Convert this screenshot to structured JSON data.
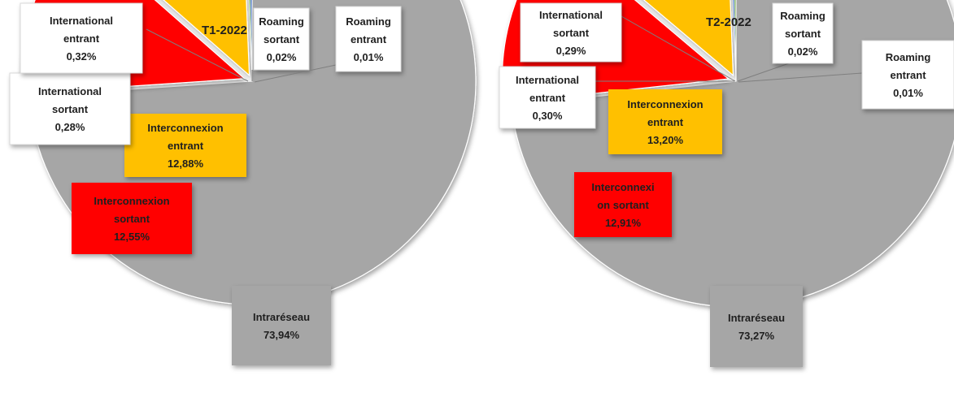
{
  "chart_data": [
    {
      "type": "pie",
      "title": "T1-2022",
      "colors": {
        "Intraréseau": "#a6a6a6",
        "Interconnexion sortant": "#ff0000",
        "Interconnexion entrant": "#ffc000",
        "International sortant": "#70ad47",
        "International entrant": "#4472c4",
        "Roaming sortant": "#5b9bd5",
        "Roaming entrant": "#264478"
      },
      "slices": [
        {
          "label": [
            "Intraréseau"
          ],
          "category": "Intraréseau",
          "value": 73.94,
          "value_text": "73,94%"
        },
        {
          "label": [
            "Interconnexion",
            "sortant"
          ],
          "category": "Interconnexion sortant",
          "value": 12.55,
          "value_text": "12,55%"
        },
        {
          "label": [
            "Interconnexion",
            "entrant"
          ],
          "category": "Interconnexion entrant",
          "value": 12.88,
          "value_text": "12,88%"
        },
        {
          "label": [
            "International",
            "sortant"
          ],
          "category": "International sortant",
          "value": 0.28,
          "value_text": "0,28%"
        },
        {
          "label": [
            "International",
            "entrant"
          ],
          "category": "International entrant",
          "value": 0.32,
          "value_text": "0,32%"
        },
        {
          "label": [
            "Roaming",
            "sortant"
          ],
          "category": "Roaming sortant",
          "value": 0.02,
          "value_text": "0,02%"
        },
        {
          "label": [
            "Roaming",
            "entrant"
          ],
          "category": "Roaming entrant",
          "value": 0.01,
          "value_text": "0,01%"
        }
      ]
    },
    {
      "type": "pie",
      "title": "T2-2022",
      "colors": {
        "Intraréseau": "#a6a6a6",
        "Interconnexion sortant": "#ff0000",
        "Interconnexion entrant": "#ffc000",
        "International sortant": "#70ad47",
        "International entrant": "#4472c4",
        "Roaming sortant": "#5b9bd5",
        "Roaming entrant": "#264478"
      },
      "slices": [
        {
          "label": [
            "Intraréseau"
          ],
          "category": "Intraréseau",
          "value": 73.27,
          "value_text": "73,27%"
        },
        {
          "label": [
            "Interconnexi",
            "on sortant"
          ],
          "category": "Interconnexion sortant",
          "value": 12.91,
          "value_text": "12,91%"
        },
        {
          "label": [
            "Interconnexion",
            "entrant"
          ],
          "category": "Interconnexion entrant",
          "value": 13.2,
          "value_text": "13,20%"
        },
        {
          "label": [
            "International",
            "entrant"
          ],
          "category": "International entrant",
          "value": 0.3,
          "value_text": "0,30%"
        },
        {
          "label": [
            "International",
            "sortant"
          ],
          "category": "International sortant",
          "value": 0.29,
          "value_text": "0,29%"
        },
        {
          "label": [
            "Roaming",
            "sortant"
          ],
          "category": "Roaming sortant",
          "value": 0.02,
          "value_text": "0,02%"
        },
        {
          "label": [
            "Roaming",
            "entrant"
          ],
          "category": "Roaming entrant",
          "value": 0.01,
          "value_text": "0,01%"
        }
      ]
    }
  ]
}
